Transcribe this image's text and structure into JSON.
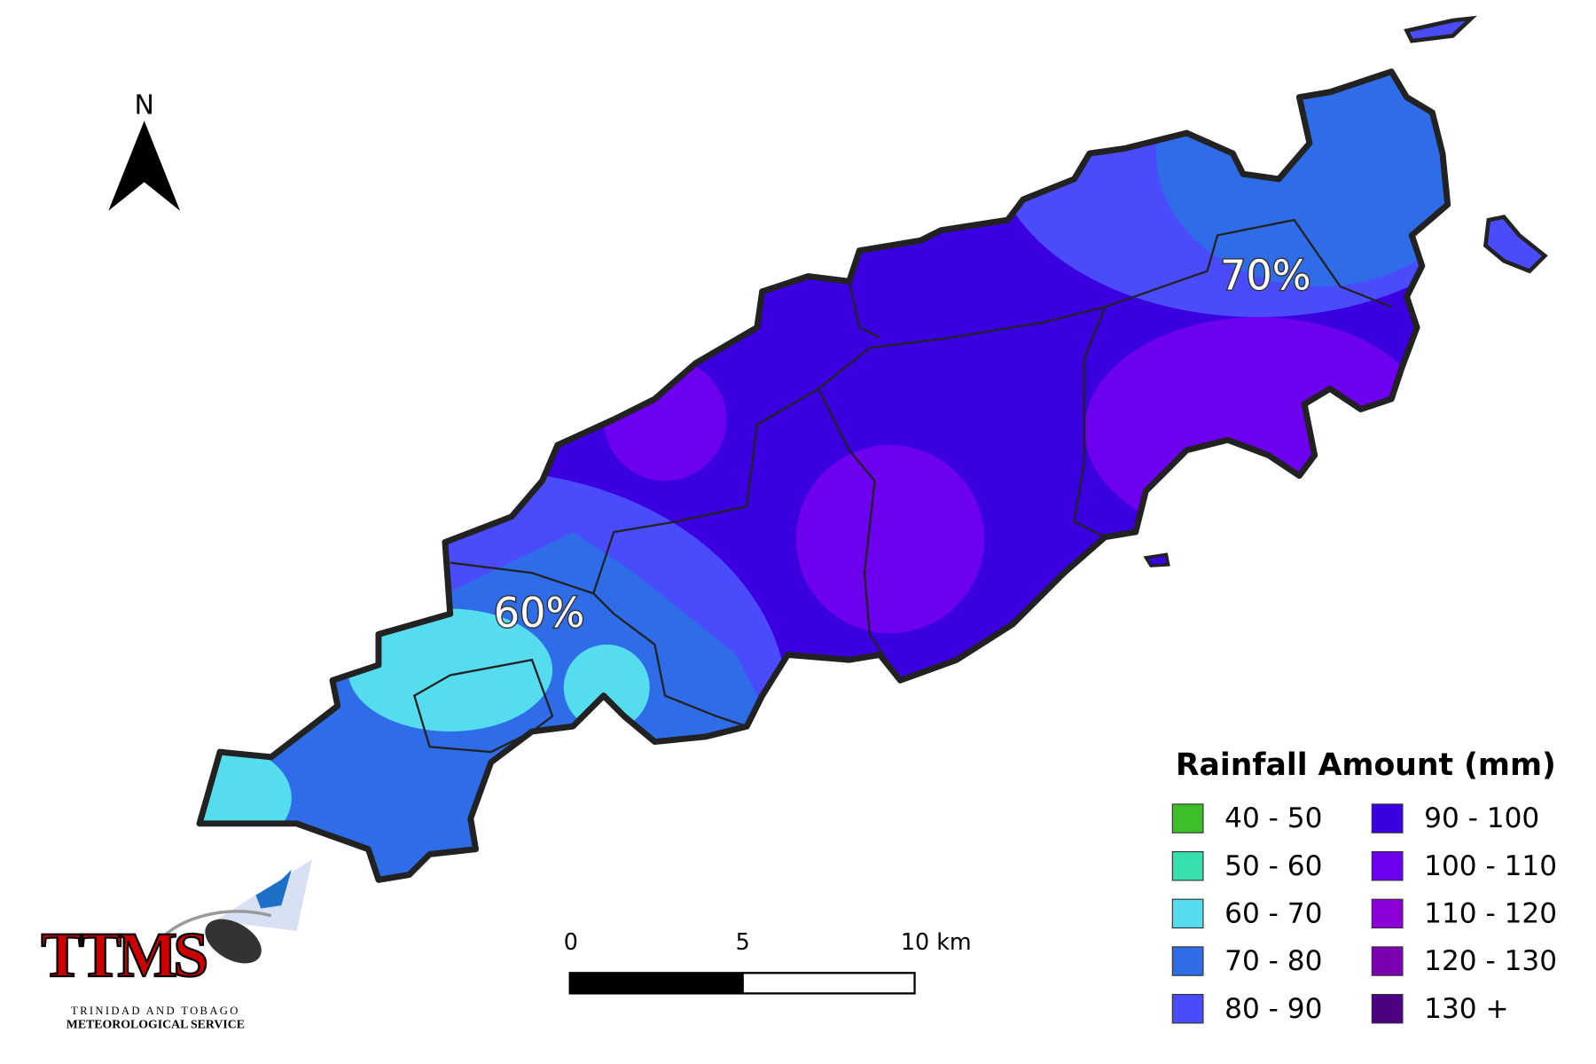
{
  "north_arrow": {
    "label": "N"
  },
  "map": {
    "labels": [
      "70%",
      "60%"
    ]
  },
  "legend": {
    "title": "Rainfall Amount (mm)",
    "items": [
      {
        "label": "40 - 50",
        "color": "#3dbf2a"
      },
      {
        "label": "50 - 60",
        "color": "#38dfae"
      },
      {
        "label": "60 - 70",
        "color": "#55dcef"
      },
      {
        "label": "70 - 80",
        "color": "#2f6de8"
      },
      {
        "label": "80 - 90",
        "color": "#4a4cfb"
      },
      {
        "label": "90 - 100",
        "color": "#3a00e0"
      },
      {
        "label": "100 - 110",
        "color": "#6d00ee"
      },
      {
        "label": "110 - 120",
        "color": "#8a00d6"
      },
      {
        "label": "120 - 130",
        "color": "#7a00b0"
      },
      {
        "label": "130 +",
        "color": "#4b0082"
      }
    ]
  },
  "scale_bar": {
    "labels": [
      "0",
      "5",
      "10 km"
    ]
  },
  "logo": {
    "name": "TTMS",
    "line1": "TRINIDAD AND TOBAGO",
    "line2": "METEOROLOGICAL SERVICE"
  }
}
